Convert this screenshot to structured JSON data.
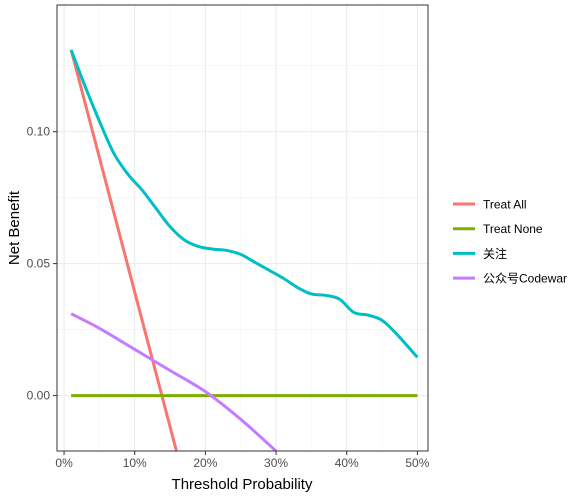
{
  "chart_data": {
    "type": "line",
    "title": "",
    "xlabel": "Threshold Probability",
    "ylabel": "Net Benefit",
    "xlim": [
      -0.01,
      0.515
    ],
    "ylim": [
      -0.021,
      0.148
    ],
    "x_ticks": [
      0,
      0.1,
      0.2,
      0.3,
      0.4,
      0.5
    ],
    "x_tick_labels": [
      "0%",
      "10%",
      "20%",
      "30%",
      "40%",
      "50%"
    ],
    "y_ticks": [
      0,
      0.05,
      0.1
    ],
    "y_tick_labels": [
      "0.00",
      "0.05",
      "0.10"
    ],
    "grid": true,
    "legend_position": "right",
    "series": [
      {
        "name": "Treat All",
        "color": "#F8766D",
        "x": [
          0.01,
          0.16
        ],
        "y": [
          0.131,
          -0.022
        ]
      },
      {
        "name": "Treat None",
        "color": "#7CAE00",
        "x": [
          0.01,
          0.5
        ],
        "y": [
          0,
          0
        ]
      },
      {
        "name": "关注",
        "color": "#00BFC4",
        "x": [
          0.01,
          0.03,
          0.05,
          0.07,
          0.09,
          0.11,
          0.13,
          0.15,
          0.17,
          0.19,
          0.21,
          0.23,
          0.25,
          0.27,
          0.29,
          0.31,
          0.33,
          0.35,
          0.37,
          0.39,
          0.41,
          0.43,
          0.45,
          0.47,
          0.5
        ],
        "y": [
          0.131,
          0.117,
          0.104,
          0.092,
          0.084,
          0.078,
          0.071,
          0.064,
          0.059,
          0.0565,
          0.0555,
          0.055,
          0.0535,
          0.0505,
          0.0475,
          0.0445,
          0.041,
          0.0385,
          0.038,
          0.0365,
          0.0315,
          0.0305,
          0.0285,
          0.0235,
          0.0145
        ]
      },
      {
        "name": "公众号Codewar",
        "color": "#C77CFF",
        "x": [
          0.01,
          0.05,
          0.1,
          0.15,
          0.2,
          0.25,
          0.3
        ],
        "y": [
          0.031,
          0.0255,
          0.0175,
          0.0095,
          0.0015,
          -0.009,
          -0.021
        ]
      }
    ]
  }
}
